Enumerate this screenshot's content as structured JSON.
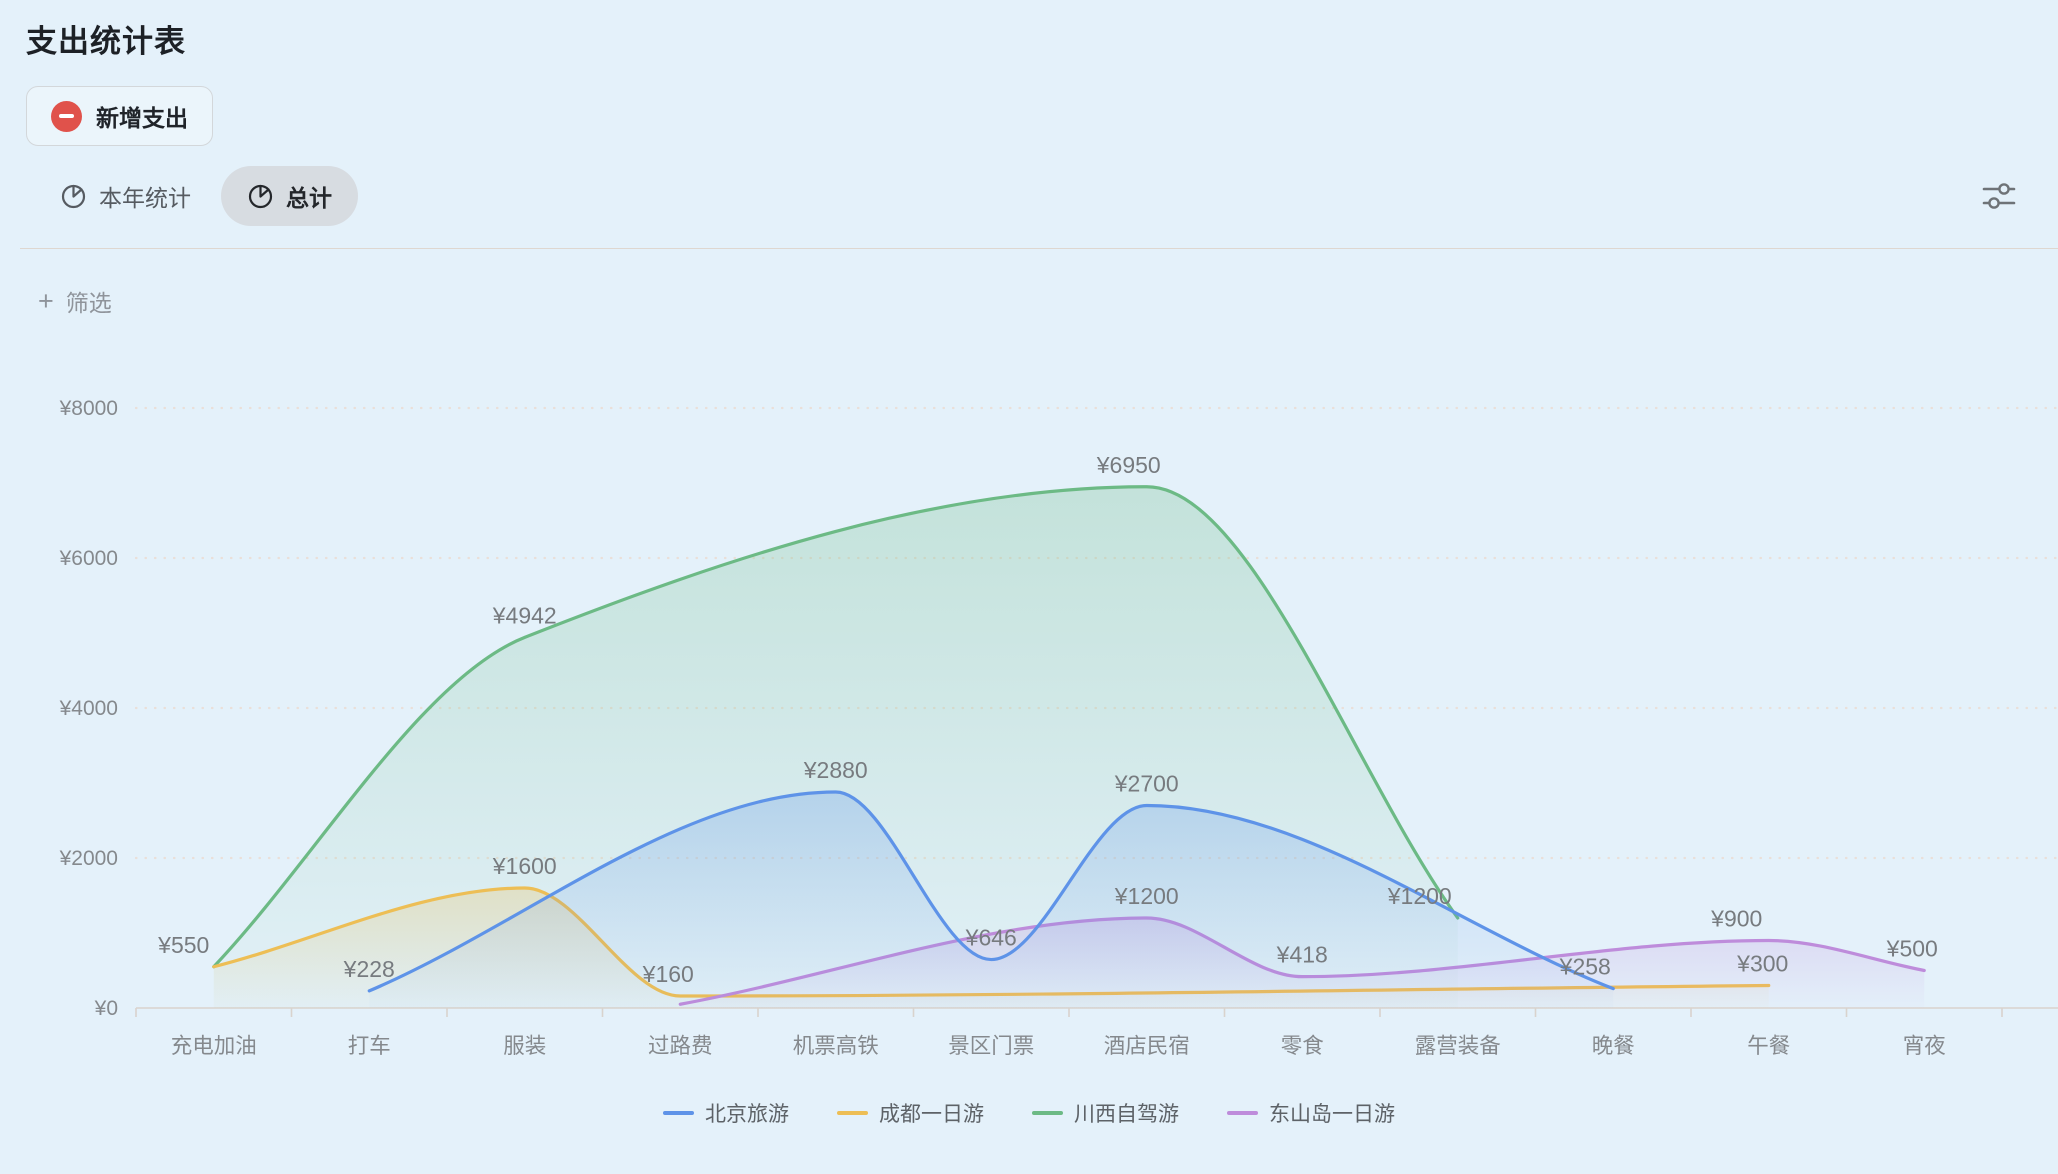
{
  "page": {
    "title": "支出统计表"
  },
  "toolbar": {
    "add_expense_label": "新增支出"
  },
  "tabs": [
    {
      "label": "本年统计",
      "active": false
    },
    {
      "label": "总计",
      "active": true
    }
  ],
  "filter": {
    "plus": "+",
    "label": "筛选"
  },
  "chart_data": {
    "type": "area",
    "currency_prefix": "¥",
    "categories": [
      "充电加油",
      "打车",
      "服装",
      "过路费",
      "机票高铁",
      "景区门票",
      "酒店民宿",
      "零食",
      "露营装备",
      "晚餐",
      "午餐",
      "宵夜"
    ],
    "y_ticks": [
      0,
      2000,
      4000,
      6000,
      8000
    ],
    "ylim": [
      0,
      8000
    ],
    "grid": "dotted-horizontal",
    "legend_position": "bottom",
    "series": [
      {
        "name": "北京旅游",
        "color": "#5E93E8",
        "points": [
          {
            "category": "打车",
            "value": 228
          },
          {
            "category": "机票高铁",
            "value": 2880
          },
          {
            "category": "景区门票",
            "value": 646
          },
          {
            "category": "酒店民宿",
            "value": 2700
          },
          {
            "category": "晚餐",
            "value": 258,
            "label_dx": -28
          }
        ]
      },
      {
        "name": "成都一日游",
        "color": "#EDBE55",
        "points": [
          {
            "category": "充电加油",
            "value": 550,
            "show_label": false
          },
          {
            "category": "服装",
            "value": 1600
          },
          {
            "category": "过路费",
            "value": 160,
            "label_dx": -12
          },
          {
            "category": "午餐",
            "value": 300,
            "label_dx": -6
          }
        ]
      },
      {
        "name": "川西自驾游",
        "color": "#6CBA85",
        "points": [
          {
            "category": "充电加油",
            "value": 550,
            "label_dx": -30
          },
          {
            "category": "服装",
            "value": 4942
          },
          {
            "category": "酒店民宿",
            "value": 6950,
            "label_dx": -18
          },
          {
            "category": "露营装备",
            "value": 1200,
            "label_dx": -38
          }
        ]
      },
      {
        "name": "东山岛一日游",
        "color": "#BE8CDB",
        "points": [
          {
            "category": "过路费",
            "value": 50,
            "show_label": false
          },
          {
            "category": "酒店民宿",
            "value": 1200
          },
          {
            "category": "零食",
            "value": 418
          },
          {
            "category": "午餐",
            "value": 900,
            "label_dx": -32
          },
          {
            "category": "宵夜",
            "value": 500,
            "label_dx": -12
          }
        ]
      }
    ]
  }
}
